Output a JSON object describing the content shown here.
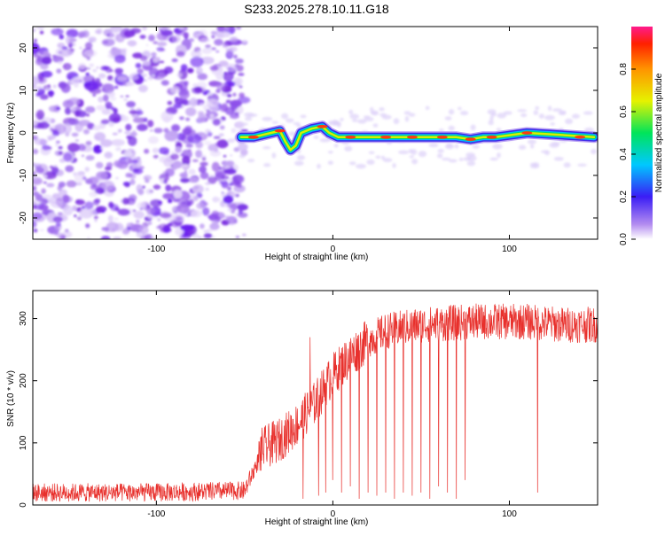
{
  "title": "S233.2025.278.10.11.G18",
  "chart_data": [
    {
      "type": "heatmap",
      "title": "S233.2025.278.10.11.G18",
      "xlabel": "Height of straight line (km)",
      "ylabel": "Frequency (Hz)",
      "xlim": [
        -170,
        150
      ],
      "ylim": [
        -25,
        25
      ],
      "xticks": [
        -100,
        0,
        100
      ],
      "yticks": [
        20,
        10,
        0,
        -10,
        -20
      ],
      "noise_region_x": [
        -170,
        -52
      ],
      "signal_region_x": [
        -52,
        150
      ],
      "signal_center_track": [
        [
          -52,
          -1
        ],
        [
          -45,
          -1
        ],
        [
          -40,
          -0.5
        ],
        [
          -35,
          0
        ],
        [
          -30,
          0.5
        ],
        [
          -27,
          -2
        ],
        [
          -24,
          -4
        ],
        [
          -21,
          -3
        ],
        [
          -18,
          0
        ],
        [
          -12,
          1
        ],
        [
          -6,
          1.5
        ],
        [
          -2,
          0
        ],
        [
          3,
          -1
        ],
        [
          20,
          -1
        ],
        [
          45,
          -1
        ],
        [
          70,
          -1
        ],
        [
          78,
          -1.5
        ],
        [
          85,
          -1
        ],
        [
          92,
          -1
        ],
        [
          110,
          0
        ],
        [
          130,
          -0.5
        ],
        [
          148,
          -1
        ]
      ],
      "colorbar": {
        "label": "Normalized spectral amplitude",
        "range": [
          0,
          1
        ],
        "ticks": [
          "0.0",
          "0.2",
          "0.4",
          "0.6",
          "0.8"
        ]
      }
    },
    {
      "type": "line",
      "xlabel": "Height of straight line (km)",
      "ylabel": "SNR (10 * v/v)",
      "xlim": [
        -170,
        150
      ],
      "ylim": [
        0,
        345
      ],
      "xticks": [
        -100,
        0,
        100
      ],
      "yticks": [
        0,
        100,
        200,
        300
      ],
      "series": [
        {
          "name": "SNR",
          "color": "#e8302c",
          "envelope": [
            [
              -170,
              25
            ],
            [
              -100,
              25
            ],
            [
              -50,
              28
            ],
            [
              -40,
              90
            ],
            [
              -30,
              105
            ],
            [
              -20,
              130
            ],
            [
              -10,
              165
            ],
            [
              0,
              210
            ],
            [
              10,
              240
            ],
            [
              20,
              265
            ],
            [
              30,
              280
            ],
            [
              50,
              290
            ],
            [
              80,
              295
            ],
            [
              110,
              295
            ],
            [
              130,
              290
            ],
            [
              150,
              290
            ]
          ],
          "deep_dropouts": [
            [
              -17,
              10
            ],
            [
              -13,
              20
            ],
            [
              -8,
              15
            ],
            [
              -4,
              20
            ],
            [
              0,
              40
            ],
            [
              5,
              20
            ],
            [
              10,
              30
            ],
            [
              15,
              10
            ],
            [
              20,
              20
            ],
            [
              25,
              15
            ],
            [
              30,
              20
            ],
            [
              35,
              10
            ],
            [
              40,
              20
            ],
            [
              45,
              15
            ],
            [
              50,
              20
            ],
            [
              55,
              10
            ],
            [
              60,
              30
            ],
            [
              65,
              20
            ],
            [
              70,
              10
            ],
            [
              75,
              40
            ],
            [
              116,
              20
            ]
          ],
          "peak_spike": [
            -13,
            270
          ]
        }
      ]
    }
  ]
}
